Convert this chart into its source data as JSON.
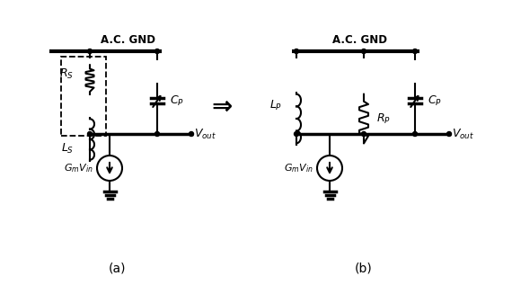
{
  "background_color": "#ffffff",
  "fig_width": 5.7,
  "fig_height": 3.17,
  "dpi": 100,
  "label_a": "(a)",
  "label_b": "(b)",
  "ac_gnd_text": "A.C. GND",
  "vout_text": "$V_{out}$",
  "gm_text": "$G_mV_{in}$",
  "rs_text": "$R_S$",
  "ls_text": "$L_S$",
  "cp_text_a": "$C_P$",
  "lp_text": "$L_P$",
  "rp_text": "$R_P$",
  "cp_text_b": "$C_P$",
  "arrow_text": "⇒",
  "lw": 1.5,
  "lw_thick": 2.5,
  "lw_rail": 3.0
}
